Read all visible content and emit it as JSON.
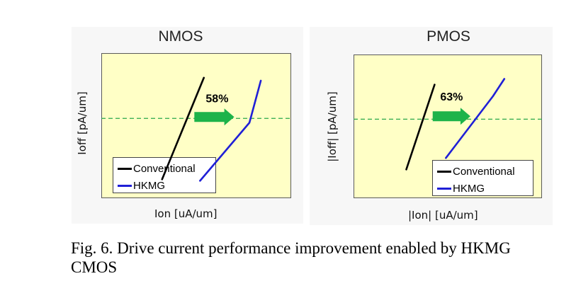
{
  "colors": {
    "conventional": "#000000",
    "hkmg": "#1f1fd6",
    "reference_line": "#2aa84a",
    "arrow": "#1db34a",
    "plot_bg": "#ffffc6"
  },
  "chart_data": [
    {
      "type": "line",
      "title": "NMOS",
      "xlabel": "Ion [uA/um]",
      "ylabel": "Ioff [pA/um]",
      "grid": false,
      "legend_position": "bottom-left",
      "annotation": "58%",
      "reference_line": {
        "style": "dashed",
        "y": 0.55
      },
      "series": [
        {
          "name": "Conventional",
          "x": [
            0.32,
            0.54
          ],
          "y": [
            0.13,
            0.83
          ]
        },
        {
          "name": "HKMG",
          "x": [
            0.52,
            0.78,
            0.84
          ],
          "y": [
            0.12,
            0.52,
            0.81
          ]
        }
      ]
    },
    {
      "type": "line",
      "title": "PMOS",
      "xlabel": "|Ion| [uA/um]",
      "ylabel": "|Ioff| [pA/um]",
      "grid": false,
      "legend_position": "bottom-right",
      "annotation": "63%",
      "reference_line": {
        "style": "dashed",
        "y": 0.55
      },
      "series": [
        {
          "name": "Conventional",
          "x": [
            0.28,
            0.43
          ],
          "y": [
            0.2,
            0.79
          ]
        },
        {
          "name": "HKMG",
          "x": [
            0.49,
            0.74,
            0.8
          ],
          "y": [
            0.28,
            0.71,
            0.83
          ]
        }
      ]
    }
  ],
  "caption": "Fig. 6. Drive current performance improvement enabled by HKMG CMOS"
}
